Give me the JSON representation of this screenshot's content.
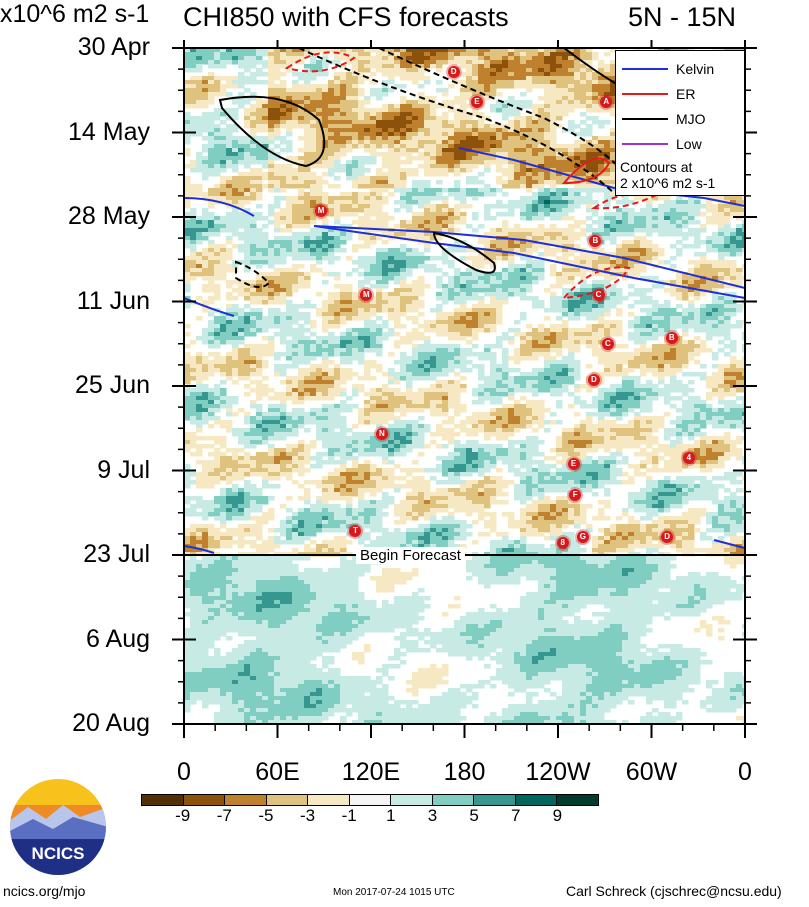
{
  "title_left": "CHI850 with CFS forecasts",
  "title_right": "5N - 15N",
  "y_labels": [
    "30 Apr",
    "14 May",
    "28 May",
    "11 Jun",
    "25 Jun",
    "9 Jul",
    "23 Jul",
    "6 Aug",
    "20 Aug"
  ],
  "x_labels": [
    "0",
    "60E",
    "120E",
    "180",
    "120W",
    "60W",
    "0"
  ],
  "legend": {
    "items": [
      {
        "label": "Kelvin",
        "color": "#1f2fd6"
      },
      {
        "label": "ER",
        "color": "#e41a1c"
      },
      {
        "label": "MJO",
        "color": "#000000"
      },
      {
        "label": "Low",
        "color": "#9b30d9"
      }
    ],
    "note_line1": "Contours at",
    "note_line2": "2 x10^6 m2 s-1"
  },
  "forecast_label": "Begin Forecast",
  "colorbar": {
    "labels": [
      "-9",
      "-7",
      "-5",
      "-3",
      "-1",
      "1",
      "3",
      "5",
      "7",
      "9"
    ],
    "colors": [
      "#543005",
      "#8c510a",
      "#bf812d",
      "#dfc27d",
      "#f6e8c3",
      "#f5f5f5",
      "#c7eae5",
      "#80cdc1",
      "#35978f",
      "#01665e",
      "#003c30"
    ],
    "units": "x10^6 m2 s-1"
  },
  "logo_text": "NCICS",
  "footer": {
    "left": "ncics.org/mjo",
    "center": "Mon 2017-07-24 1015 UTC",
    "right": "Carl Schreck (cjschrec@ncsu.edu)"
  },
  "storms": [
    {
      "letter": "D",
      "lon": 173,
      "date": "2017-05-04"
    },
    {
      "letter": "E",
      "lon": 188,
      "date": "2017-05-09"
    },
    {
      "letter": "A",
      "lon": 271,
      "date": "2017-05-09"
    },
    {
      "letter": "M",
      "lon": 88,
      "date": "2017-05-27"
    },
    {
      "letter": "B",
      "lon": 264,
      "date": "2017-06-01"
    },
    {
      "letter": "M",
      "lon": 117,
      "date": "2017-06-10"
    },
    {
      "letter": "C",
      "lon": 266,
      "date": "2017-06-10"
    },
    {
      "letter": "C",
      "lon": 272,
      "date": "2017-06-18"
    },
    {
      "letter": "B",
      "lon": 313,
      "date": "2017-06-17"
    },
    {
      "letter": "D",
      "lon": 263,
      "date": "2017-06-24"
    },
    {
      "letter": "N",
      "lon": 127,
      "date": "2017-07-03"
    },
    {
      "letter": "4",
      "lon": 324,
      "date": "2017-07-07"
    },
    {
      "letter": "E",
      "lon": 250,
      "date": "2017-07-08"
    },
    {
      "letter": "F",
      "lon": 251,
      "date": "2017-07-13"
    },
    {
      "letter": "T",
      "lon": 110,
      "date": "2017-07-19"
    },
    {
      "letter": "G",
      "lon": 256,
      "date": "2017-07-20"
    },
    {
      "letter": "8",
      "lon": 243,
      "date": "2017-07-21"
    },
    {
      "letter": "D",
      "lon": 310,
      "date": "2017-07-20"
    }
  ],
  "chart_data": {
    "type": "heatmap",
    "title": "CHI850 with CFS forecasts",
    "subtitle": "5N - 15N",
    "x_range": [
      0,
      360
    ],
    "x_ticks": [
      "0",
      "60E",
      "120E",
      "180",
      "120W",
      "60W",
      "0"
    ],
    "y_range": [
      "2017-04-30",
      "2017-08-20"
    ],
    "y_ticks": [
      "30 Apr",
      "14 May",
      "28 May",
      "11 Jun",
      "25 Jun",
      "9 Jul",
      "23 Jul",
      "6 Aug",
      "20 Aug"
    ],
    "forecast_start": "2017-07-23",
    "contour_levels": [
      -9,
      -7,
      -5,
      -3,
      -1,
      1,
      3,
      5,
      7,
      9
    ],
    "units": "x10^6 m2 s-1",
    "series": [
      {
        "name": "Kelvin",
        "color": "#1f2fd6"
      },
      {
        "name": "ER",
        "color": "#e41a1c"
      },
      {
        "name": "MJO",
        "color": "#000000"
      },
      {
        "name": "Low",
        "color": "#9b30d9"
      }
    ],
    "legend_position": "top-right"
  }
}
